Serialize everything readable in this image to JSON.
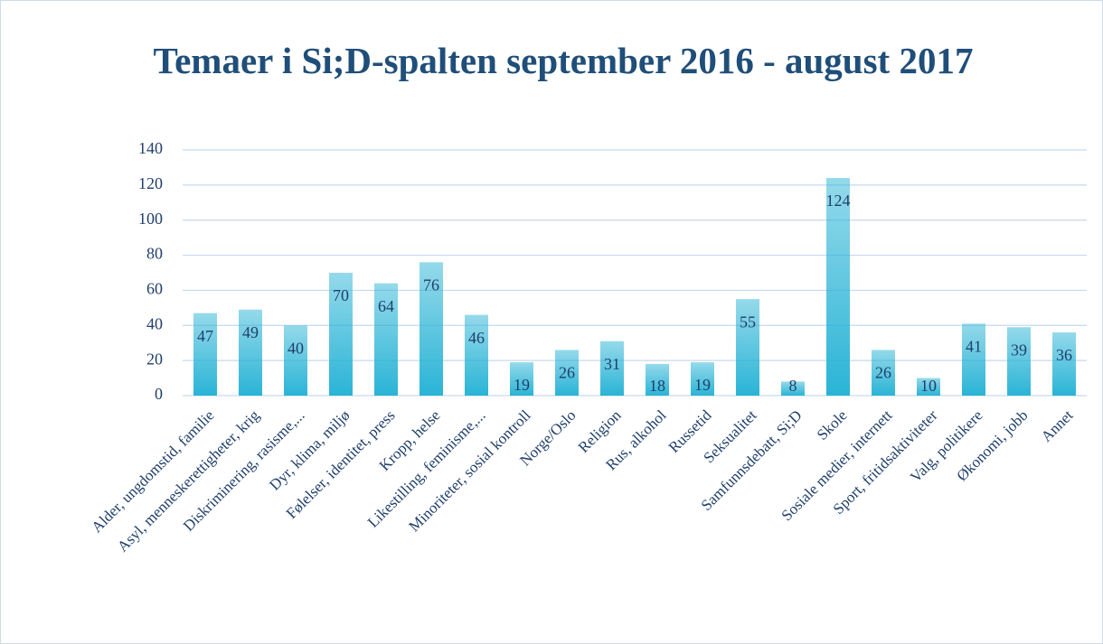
{
  "chart_data": {
    "type": "bar",
    "title": "Temaer i Si;D-spalten september 2016 - august 2017",
    "categories": [
      "Alder, ungdomstid, familie",
      "Asyl, menneskerettigheter,  krig",
      "Diskriminering, rasisme,...",
      "Dyr, klima, miljø",
      "Følelser, identitet, press",
      "Kropp, helse",
      "Likestilling, feminisme,...",
      "Minoriteter, sosial kontroll",
      "Norge/Oslo",
      "Religion",
      "Rus, alkohol",
      "Russetid",
      "Seksualitet",
      "Samfunnsdebatt, Si;D",
      "Skole",
      "Sosiale medier, internett",
      "Sport, fritidsaktiviteter",
      "Valg, politikere",
      "Økonomi, jobb",
      "Annet"
    ],
    "values": [
      47,
      49,
      40,
      70,
      64,
      76,
      46,
      19,
      26,
      31,
      18,
      19,
      55,
      8,
      124,
      26,
      10,
      41,
      39,
      36
    ],
    "color": "#2ab4d6",
    "ylim": [
      0,
      140
    ],
    "yticks": [
      0,
      20,
      40,
      60,
      80,
      100,
      120,
      140
    ],
    "grid": true,
    "data_labels": true
  }
}
